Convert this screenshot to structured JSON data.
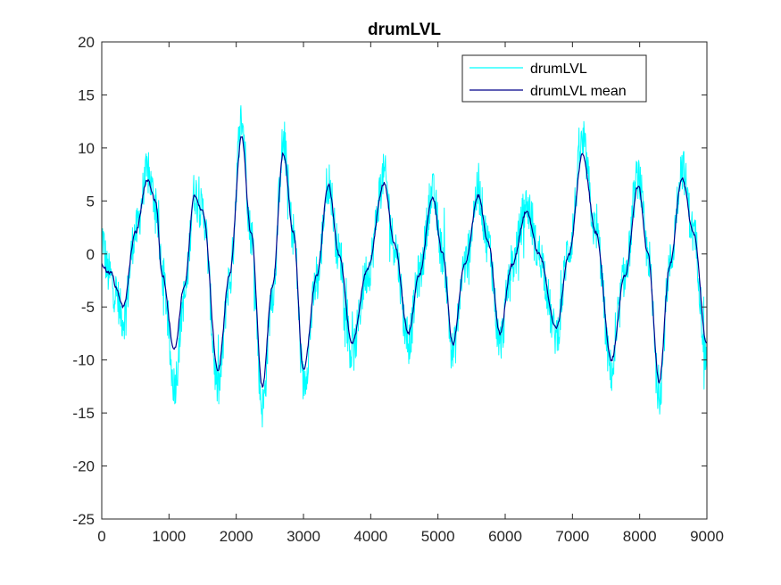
{
  "chart_data": {
    "type": "line",
    "title": "drumLVL",
    "xlabel": "",
    "ylabel": "",
    "xlim": [
      0,
      9000
    ],
    "ylim": [
      -25,
      20
    ],
    "x_ticks": [
      0,
      1000,
      2000,
      3000,
      4000,
      5000,
      6000,
      7000,
      8000,
      9000
    ],
    "y_ticks": [
      -25,
      -20,
      -15,
      -10,
      -5,
      0,
      5,
      10,
      15,
      20
    ],
    "x_tick_labels": [
      "0",
      "1000",
      "2000",
      "3000",
      "4000",
      "5000",
      "6000",
      "7000",
      "8000",
      "9000"
    ],
    "y_tick_labels": [
      "-25",
      "-20",
      "-15",
      "-10",
      "-5",
      "0",
      "5",
      "10",
      "15",
      "20"
    ],
    "grid": false,
    "legend_position": "top-right",
    "series": [
      {
        "name": "drumLVL",
        "color": "#00ffff",
        "noisy": true,
        "x": [
          0,
          100,
          200,
          320,
          500,
          680,
          800,
          900,
          1080,
          1230,
          1380,
          1500,
          1730,
          1900,
          2080,
          2220,
          2390,
          2540,
          2700,
          2850,
          3000,
          3200,
          3370,
          3530,
          3720,
          3950,
          4200,
          4350,
          4560,
          4720,
          4920,
          5070,
          5220,
          5400,
          5600,
          5750,
          5920,
          6100,
          6320,
          6500,
          6760,
          6950,
          7150,
          7350,
          7580,
          7780,
          7980,
          8120,
          8290,
          8450,
          8630,
          8800,
          9000
        ],
        "values": [
          4,
          -2,
          -4,
          -7,
          2,
          8,
          5,
          -2,
          -15,
          -5,
          6,
          4,
          -14,
          -3,
          14,
          2,
          -16,
          -4,
          11,
          2,
          -13,
          -3,
          7,
          0,
          -10,
          -2,
          8,
          1,
          -9,
          -2,
          6,
          0,
          -10,
          -1,
          6,
          1,
          -9,
          -1,
          5,
          0,
          -8,
          1,
          11,
          2,
          -12,
          -2,
          8,
          0,
          -14,
          -1,
          9,
          2,
          -11
        ]
      },
      {
        "name": "drumLVL mean",
        "color": "#00008b",
        "noisy": false,
        "x": [
          0,
          100,
          150,
          200,
          320,
          500,
          680,
          800,
          900,
          1080,
          1230,
          1380,
          1500,
          1730,
          1900,
          2080,
          2220,
          2390,
          2540,
          2700,
          2850,
          3000,
          3200,
          3370,
          3530,
          3720,
          3950,
          4200,
          4350,
          4560,
          4720,
          4920,
          5070,
          5220,
          5400,
          5600,
          5750,
          5920,
          6100,
          6320,
          6500,
          6760,
          6950,
          7150,
          7350,
          7580,
          7780,
          7980,
          8120,
          8290,
          8450,
          8630,
          8800,
          9000
        ],
        "values": [
          -1,
          -1.8,
          -1.8,
          -3,
          -5,
          2,
          7,
          5,
          -2,
          -9,
          -3,
          5.5,
          4,
          -11,
          -2,
          11,
          2,
          -12.5,
          -3,
          9.5,
          2,
          -11,
          -2,
          6.5,
          0,
          -8.5,
          -1.5,
          6.7,
          1,
          -7.5,
          -2,
          5.3,
          0,
          -8.5,
          -1,
          5.5,
          1,
          -7.5,
          -1,
          4,
          0,
          -7,
          0,
          9.4,
          2,
          -10,
          -2,
          6.5,
          0,
          -12,
          -1,
          7.2,
          2,
          -8.5
        ]
      }
    ]
  }
}
